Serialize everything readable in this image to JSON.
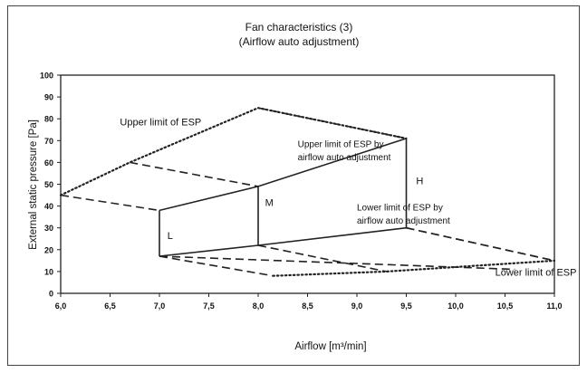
{
  "chart_data": {
    "type": "line",
    "title": "Fan characteristics (3)",
    "subtitle": "(Airflow auto adjustment)",
    "xlabel": "Airflow [m³/min]",
    "ylabel": "External static pressure [Pa]",
    "xlim": [
      6.0,
      11.0
    ],
    "ylim": [
      0,
      100
    ],
    "x_ticks": [
      "6,0",
      "6,5",
      "7,0",
      "7,5",
      "8,0",
      "8,5",
      "9,0",
      "9,5",
      "10,0",
      "10,5",
      "11,0"
    ],
    "y_ticks": [
      "0",
      "10",
      "20",
      "30",
      "40",
      "50",
      "60",
      "70",
      "80",
      "90",
      "100"
    ],
    "grid": false,
    "series": [
      {
        "style": "dotted",
        "points": [
          [
            6.0,
            45
          ],
          [
            6.7,
            60
          ],
          [
            8.0,
            85
          ],
          [
            9.5,
            71
          ]
        ]
      },
      {
        "style": "dotted",
        "points": [
          [
            8.15,
            8
          ],
          [
            9.3,
            10
          ],
          [
            11.0,
            15
          ]
        ]
      },
      {
        "style": "dashed",
        "points": [
          [
            6.0,
            45
          ],
          [
            7.0,
            38
          ]
        ]
      },
      {
        "style": "dashed",
        "points": [
          [
            6.7,
            60
          ],
          [
            8.0,
            49
          ]
        ]
      },
      {
        "style": "dashed",
        "points": [
          [
            8.0,
            85
          ],
          [
            9.5,
            71
          ]
        ]
      },
      {
        "style": "dashed",
        "points": [
          [
            9.5,
            30
          ],
          [
            11.0,
            15
          ]
        ]
      },
      {
        "style": "dashed",
        "points": [
          [
            7.0,
            17
          ],
          [
            8.15,
            8
          ]
        ]
      },
      {
        "style": "dashed",
        "points": [
          [
            8.0,
            22
          ],
          [
            9.3,
            10
          ]
        ]
      },
      {
        "style": "dashed",
        "points": [
          [
            9.5,
            30
          ],
          [
            11.0,
            15
          ]
        ]
      },
      {
        "style": "dashed",
        "points": [
          [
            7.0,
            17
          ],
          [
            10.6,
            11
          ]
        ]
      },
      {
        "style": "solid",
        "points": [
          [
            7.0,
            38
          ],
          [
            8.0,
            49
          ],
          [
            9.5,
            71
          ]
        ]
      },
      {
        "style": "solid",
        "points": [
          [
            7.0,
            17
          ],
          [
            8.0,
            22
          ],
          [
            9.5,
            30
          ]
        ]
      },
      {
        "style": "solid",
        "points": [
          [
            7.0,
            38
          ],
          [
            7.0,
            17
          ]
        ]
      },
      {
        "style": "solid",
        "points": [
          [
            8.0,
            49
          ],
          [
            8.0,
            22
          ]
        ]
      },
      {
        "style": "solid",
        "points": [
          [
            9.5,
            71
          ],
          [
            9.5,
            30
          ]
        ]
      }
    ],
    "annotations": [
      {
        "text": "Upper limit of ESP",
        "x": 6.6,
        "y": 77
      },
      {
        "text": "Upper limit of ESP by",
        "x": 8.4,
        "y": 67
      },
      {
        "text": "airflow auto adjustment",
        "x": 8.4,
        "y": 61
      },
      {
        "text": "Lower limit of ESP by",
        "x": 9.0,
        "y": 38
      },
      {
        "text": "airflow auto adjustment",
        "x": 9.0,
        "y": 32
      },
      {
        "text": "Lower limit of ESP",
        "x": 10.4,
        "y": 8
      },
      {
        "text": "L",
        "x": 7.08,
        "y": 25
      },
      {
        "text": "M",
        "x": 8.07,
        "y": 40
      },
      {
        "text": "H",
        "x": 9.6,
        "y": 50
      }
    ]
  }
}
